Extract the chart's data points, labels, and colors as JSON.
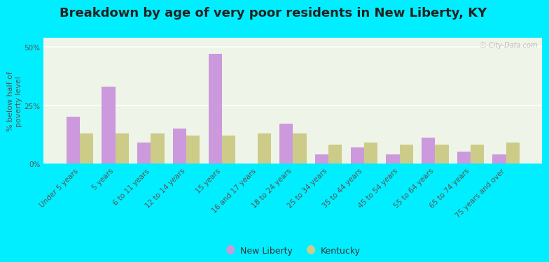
{
  "title": "Breakdown by age of very poor residents in New Liberty, KY",
  "ylabel": "% below half of\npoverty level",
  "categories": [
    "Under 5 years",
    "5 years",
    "6 to 11 years",
    "12 to 14 years",
    "15 years",
    "16 and 17 years",
    "18 to 24 years",
    "25 to 34 years",
    "35 to 44 years",
    "45 to 54 years",
    "55 to 64 years",
    "65 to 74 years",
    "75 years and over"
  ],
  "new_liberty": [
    20,
    33,
    9,
    15,
    47,
    0,
    17,
    4,
    7,
    4,
    11,
    5,
    4
  ],
  "kentucky": [
    13,
    13,
    13,
    12,
    12,
    13,
    13,
    8,
    9,
    8,
    8,
    8,
    9
  ],
  "new_liberty_color": "#cc99dd",
  "kentucky_color": "#cccc88",
  "background_outer": "#00eeff",
  "background_plot": "#eef4e8",
  "ylim": [
    0,
    54
  ],
  "yticks": [
    0,
    25,
    50
  ],
  "ytick_labels": [
    "0%",
    "25%",
    "50%"
  ],
  "title_fontsize": 13,
  "axis_label_fontsize": 8,
  "tick_label_fontsize": 7.5,
  "bar_width": 0.38,
  "watermark": "ⓘ City-Data.com"
}
